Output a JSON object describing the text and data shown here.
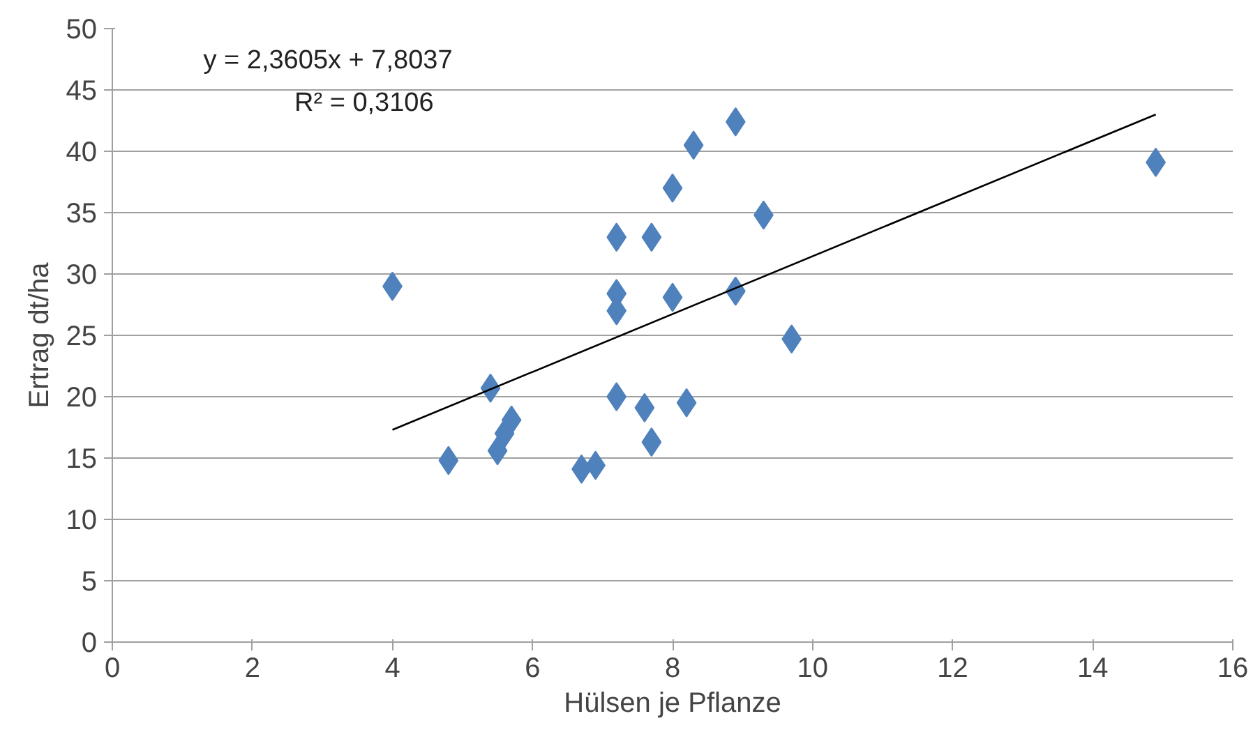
{
  "chart_data": {
    "type": "scatter",
    "xlabel": "Hülsen je Pflanze",
    "ylabel": "Ertrag dt/ha",
    "annotations": [
      "y = 2,3605x + 7,8037",
      "R² = 0,3106"
    ],
    "series": [
      {
        "color": "#4f81bd",
        "marker": "diamond",
        "x": [
          4.0,
          4.8,
          5.4,
          5.5,
          5.6,
          5.7,
          6.7,
          6.9,
          7.2,
          7.2,
          7.2,
          7.2,
          7.7,
          7.6,
          7.7,
          8.0,
          8.0,
          8.2,
          8.3,
          8.9,
          8.9,
          9.3,
          9.7,
          14.9
        ],
        "values": [
          29.0,
          14.8,
          20.7,
          15.6,
          17.0,
          18.1,
          14.1,
          14.4,
          33.0,
          28.4,
          27.0,
          20.0,
          33.0,
          19.1,
          16.3,
          37.0,
          28.1,
          19.5,
          40.5,
          42.4,
          28.6,
          34.8,
          24.7,
          39.1
        ]
      },
      {
        "type": "line",
        "color": "#000000",
        "marker": "none",
        "x": [
          4.0,
          14.9
        ],
        "values": [
          17.3,
          43.0
        ]
      }
    ],
    "xlim": [
      0,
      16
    ],
    "xticks": [
      0,
      2,
      4,
      6,
      8,
      10,
      12,
      14,
      16
    ],
    "ylim": [
      0,
      50
    ],
    "yticks": [
      0,
      5,
      10,
      15,
      20,
      25,
      30,
      35,
      40,
      45,
      50
    ],
    "grid": "y"
  }
}
